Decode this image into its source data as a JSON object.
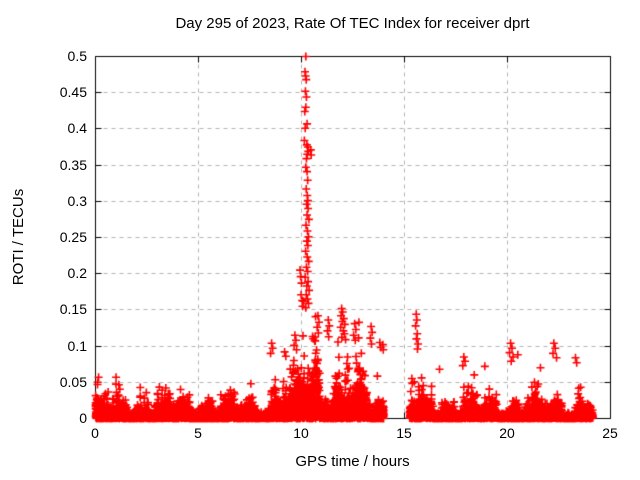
{
  "chart_data": {
    "type": "scatter",
    "title": "Day 295 of 2023, Rate Of TEC Index for receiver dprt",
    "xlabel": "GPS time / hours",
    "ylabel": "ROTI / TECUs",
    "xlim": [
      0,
      25
    ],
    "ylim": [
      0,
      0.5
    ],
    "xticks": [
      0,
      5,
      10,
      15,
      20,
      25
    ],
    "yticks": [
      0,
      0.05,
      0.1,
      0.15,
      0.2,
      0.25,
      0.3,
      0.35,
      0.4,
      0.45,
      0.5
    ],
    "xtick_labels": [
      "0",
      "5",
      "10",
      "15",
      "20",
      "25"
    ],
    "ytick_labels": [
      "0",
      "0.05",
      "0.1",
      "0.15",
      "0.2",
      "0.25",
      "0.3",
      "0.35",
      "0.4",
      "0.45",
      "0.5"
    ],
    "legend": "none",
    "grid": {
      "show": true,
      "style": "dashed",
      "color": "#b4b4b4"
    },
    "colors": {
      "border": "#000000",
      "text": "#000000"
    },
    "marker": {
      "shape": "plus",
      "color": "#ff0000",
      "size": 8,
      "stroke": 1.6
    },
    "seed": 7,
    "data_gaps": [
      [
        14.0,
        15.25
      ]
    ],
    "noise_segments": [
      {
        "t0": 0.0,
        "t1": 8.5,
        "n": 2700,
        "scale": 0.0105,
        "cap": 0.068
      },
      {
        "t0": 8.5,
        "t1": 9.8,
        "n": 520,
        "scale": 0.0145,
        "cap": 0.105,
        "boost_t": 9.7,
        "boost_sigma": 0.3,
        "boost_amp": 0.4
      },
      {
        "t0": 9.8,
        "t1": 13.2,
        "n": 1500,
        "scale": 0.022,
        "cap": 0.15,
        "boost_t": 10.35,
        "boost_sigma": 0.5,
        "boost_amp": 1.2
      },
      {
        "t0": 13.2,
        "t1": 14.0,
        "n": 350,
        "scale": 0.014,
        "cap": 0.11
      },
      {
        "t0": 15.25,
        "t1": 24.15,
        "n": 2900,
        "scale": 0.01,
        "cap": 0.075,
        "boost_t": 15.6,
        "boost_sigma": 0.25,
        "boost_amp": 0.5
      }
    ],
    "outliers": [
      [
        10.21,
        0.5
      ],
      [
        10.17,
        0.479
      ],
      [
        10.2,
        0.473
      ],
      [
        10.23,
        0.468
      ],
      [
        10.19,
        0.452
      ],
      [
        10.24,
        0.444
      ],
      [
        10.21,
        0.43
      ],
      [
        10.16,
        0.424
      ],
      [
        10.27,
        0.407
      ],
      [
        10.18,
        0.401
      ],
      [
        10.14,
        0.384
      ],
      [
        10.26,
        0.378
      ],
      [
        10.31,
        0.375
      ],
      [
        10.33,
        0.369
      ],
      [
        10.28,
        0.365
      ],
      [
        10.24,
        0.359
      ],
      [
        10.45,
        0.371
      ],
      [
        10.47,
        0.364
      ],
      [
        10.21,
        0.347
      ],
      [
        10.27,
        0.341
      ],
      [
        10.3,
        0.329
      ],
      [
        10.23,
        0.317
      ],
      [
        10.28,
        0.308
      ],
      [
        10.31,
        0.301
      ],
      [
        10.25,
        0.296
      ],
      [
        10.32,
        0.29
      ],
      [
        10.27,
        0.281
      ],
      [
        10.36,
        0.275
      ],
      [
        10.22,
        0.267
      ],
      [
        10.29,
        0.259
      ],
      [
        10.34,
        0.251
      ],
      [
        10.26,
        0.245
      ],
      [
        10.31,
        0.239
      ],
      [
        10.2,
        0.231
      ],
      [
        10.28,
        0.223
      ],
      [
        10.35,
        0.217
      ],
      [
        10.24,
        0.209
      ],
      [
        10.3,
        0.203
      ],
      [
        10.18,
        0.195
      ],
      [
        10.32,
        0.189
      ],
      [
        10.26,
        0.183
      ],
      [
        10.37,
        0.177
      ],
      [
        10.23,
        0.171
      ],
      [
        10.29,
        0.165
      ],
      [
        10.34,
        0.159
      ],
      [
        10.21,
        0.153
      ],
      [
        10.1,
        0.162
      ],
      [
        10.05,
        0.155
      ],
      [
        9.93,
        0.205
      ],
      [
        9.96,
        0.196
      ],
      [
        10.0,
        0.187
      ],
      [
        9.98,
        0.171
      ],
      [
        10.03,
        0.163
      ],
      [
        11.95,
        0.152
      ],
      [
        12.0,
        0.147
      ],
      [
        11.92,
        0.142
      ],
      [
        12.05,
        0.138
      ],
      [
        11.98,
        0.134
      ],
      [
        12.1,
        0.13
      ],
      [
        11.9,
        0.126
      ],
      [
        12.03,
        0.121
      ],
      [
        12.08,
        0.117
      ],
      [
        11.96,
        0.112
      ],
      [
        12.14,
        0.109
      ],
      [
        11.3,
        0.136
      ],
      [
        11.35,
        0.128
      ],
      [
        11.26,
        0.121
      ],
      [
        11.32,
        0.113
      ],
      [
        10.8,
        0.142
      ],
      [
        10.85,
        0.133
      ],
      [
        10.76,
        0.126
      ],
      [
        10.82,
        0.118
      ],
      [
        12.58,
        0.131
      ],
      [
        12.64,
        0.123
      ],
      [
        12.53,
        0.115
      ],
      [
        12.61,
        0.108
      ],
      [
        13.38,
        0.127
      ],
      [
        13.43,
        0.119
      ],
      [
        13.34,
        0.111
      ],
      [
        13.4,
        0.103
      ],
      [
        13.8,
        0.105
      ],
      [
        13.85,
        0.098
      ],
      [
        13.95,
        0.102
      ],
      [
        13.97,
        0.095
      ],
      [
        9.68,
        0.115
      ],
      [
        9.73,
        0.108
      ],
      [
        9.64,
        0.101
      ],
      [
        9.76,
        0.095
      ],
      [
        8.55,
        0.104
      ],
      [
        8.6,
        0.097
      ],
      [
        8.5,
        0.09
      ],
      [
        9.18,
        0.092
      ],
      [
        9.24,
        0.086
      ],
      [
        15.57,
        0.144
      ],
      [
        15.6,
        0.136
      ],
      [
        15.54,
        0.128
      ],
      [
        15.62,
        0.117
      ],
      [
        15.58,
        0.11
      ],
      [
        15.66,
        0.103
      ],
      [
        15.63,
        0.096
      ],
      [
        16.7,
        0.068
      ],
      [
        17.88,
        0.085
      ],
      [
        17.94,
        0.079
      ],
      [
        17.83,
        0.073
      ],
      [
        18.9,
        0.072
      ],
      [
        20.15,
        0.104
      ],
      [
        20.22,
        0.097
      ],
      [
        20.1,
        0.091
      ],
      [
        20.27,
        0.085
      ],
      [
        20.18,
        0.079
      ],
      [
        20.5,
        0.088
      ],
      [
        22.25,
        0.104
      ],
      [
        22.32,
        0.097
      ],
      [
        22.21,
        0.09
      ],
      [
        22.38,
        0.084
      ],
      [
        23.3,
        0.084
      ],
      [
        23.36,
        0.077
      ],
      [
        21.6,
        0.07
      ],
      [
        0.15,
        0.057
      ],
      [
        0.1,
        0.05
      ]
    ]
  }
}
